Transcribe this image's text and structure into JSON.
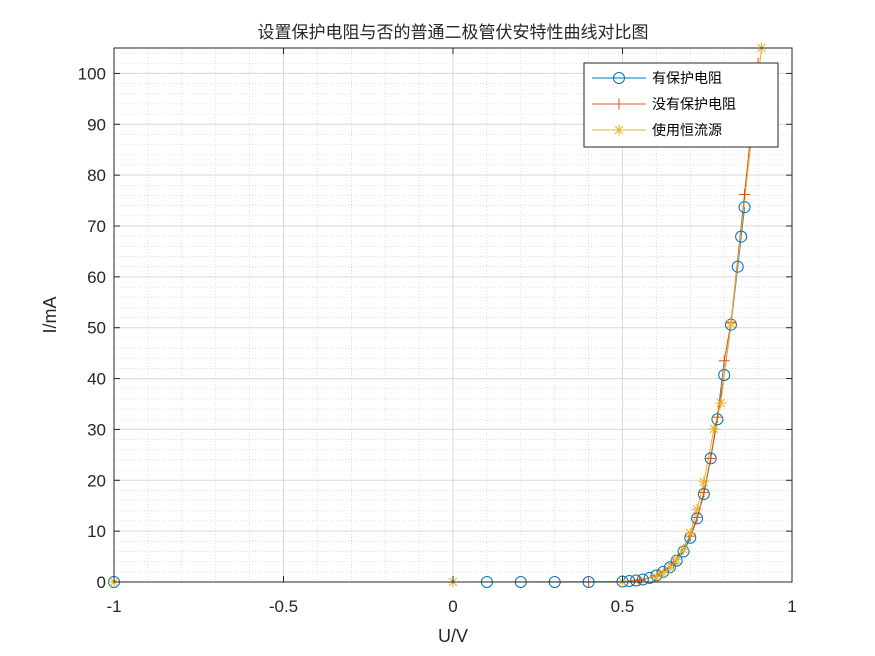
{
  "chart_data": {
    "type": "line",
    "title": "设置保护电阻与否的普通二极管伏安特性曲线对比图",
    "xlabel": "U/V",
    "ylabel": "I/mA",
    "xlim": [
      -1,
      1
    ],
    "ylim": [
      0,
      105
    ],
    "xticks": [
      -1,
      -0.5,
      0,
      0.5,
      1
    ],
    "yticks": [
      0,
      10,
      20,
      30,
      40,
      50,
      60,
      70,
      80,
      90,
      100
    ],
    "xtick_labels": [
      "-1",
      "-0.5",
      "0",
      "0.5",
      "1"
    ],
    "ytick_labels": [
      "0",
      "10",
      "20",
      "30",
      "40",
      "50",
      "60",
      "70",
      "80",
      "90",
      "100"
    ],
    "grid": true,
    "minor_grid": true,
    "legend_position": "top-right",
    "series": [
      {
        "name": "有保护电阻",
        "color": "#0072BD",
        "marker": "circle",
        "points": [
          [
            -1,
            0
          ],
          [
            0.1,
            0
          ],
          [
            0.2,
            0
          ],
          [
            0.3,
            0
          ],
          [
            0.4,
            0
          ],
          [
            0.5,
            0.1
          ],
          [
            0.52,
            0.2
          ],
          [
            0.54,
            0.3
          ],
          [
            0.56,
            0.5
          ],
          [
            0.58,
            0.8
          ],
          [
            0.6,
            1.3
          ],
          [
            0.62,
            2.0
          ],
          [
            0.64,
            2.9
          ],
          [
            0.66,
            4.2
          ],
          [
            0.68,
            6.0
          ],
          [
            0.7,
            8.7
          ],
          [
            0.72,
            12.5
          ],
          [
            0.74,
            17.3
          ],
          [
            0.76,
            24.3
          ],
          [
            0.78,
            32.0
          ],
          [
            0.8,
            40.7
          ],
          [
            0.82,
            50.6
          ],
          [
            0.84,
            62.0
          ],
          [
            0.85,
            67.9
          ],
          [
            0.86,
            73.7
          ]
        ]
      },
      {
        "name": "没有保护电阻",
        "color": "#D95319",
        "marker": "plus",
        "points": [
          [
            -1,
            0
          ],
          [
            0.4,
            0
          ],
          [
            0.5,
            0.1
          ],
          [
            0.55,
            0.3
          ],
          [
            0.6,
            1.3
          ],
          [
            0.65,
            3.6
          ],
          [
            0.7,
            9.0
          ],
          [
            0.72,
            12.7
          ],
          [
            0.74,
            17.6
          ],
          [
            0.76,
            24.3
          ],
          [
            0.78,
            32.4
          ],
          [
            0.8,
            43.5
          ],
          [
            0.82,
            51.0
          ],
          [
            0.86,
            76.2
          ],
          [
            0.9,
            102
          ]
        ]
      },
      {
        "name": "使用恒流源",
        "color": "#EDB120",
        "marker": "star",
        "points": [
          [
            -1,
            0
          ],
          [
            0,
            0
          ],
          [
            0.5,
            0.1
          ],
          [
            0.6,
            1.0
          ],
          [
            0.62,
            1.8
          ],
          [
            0.64,
            2.8
          ],
          [
            0.66,
            4.4
          ],
          [
            0.68,
            6.4
          ],
          [
            0.7,
            9.6
          ],
          [
            0.72,
            14.3
          ],
          [
            0.74,
            19.7
          ],
          [
            0.77,
            30.1
          ],
          [
            0.79,
            35.2
          ],
          [
            0.82,
            50.8
          ],
          [
            0.91,
            105
          ]
        ]
      }
    ]
  }
}
